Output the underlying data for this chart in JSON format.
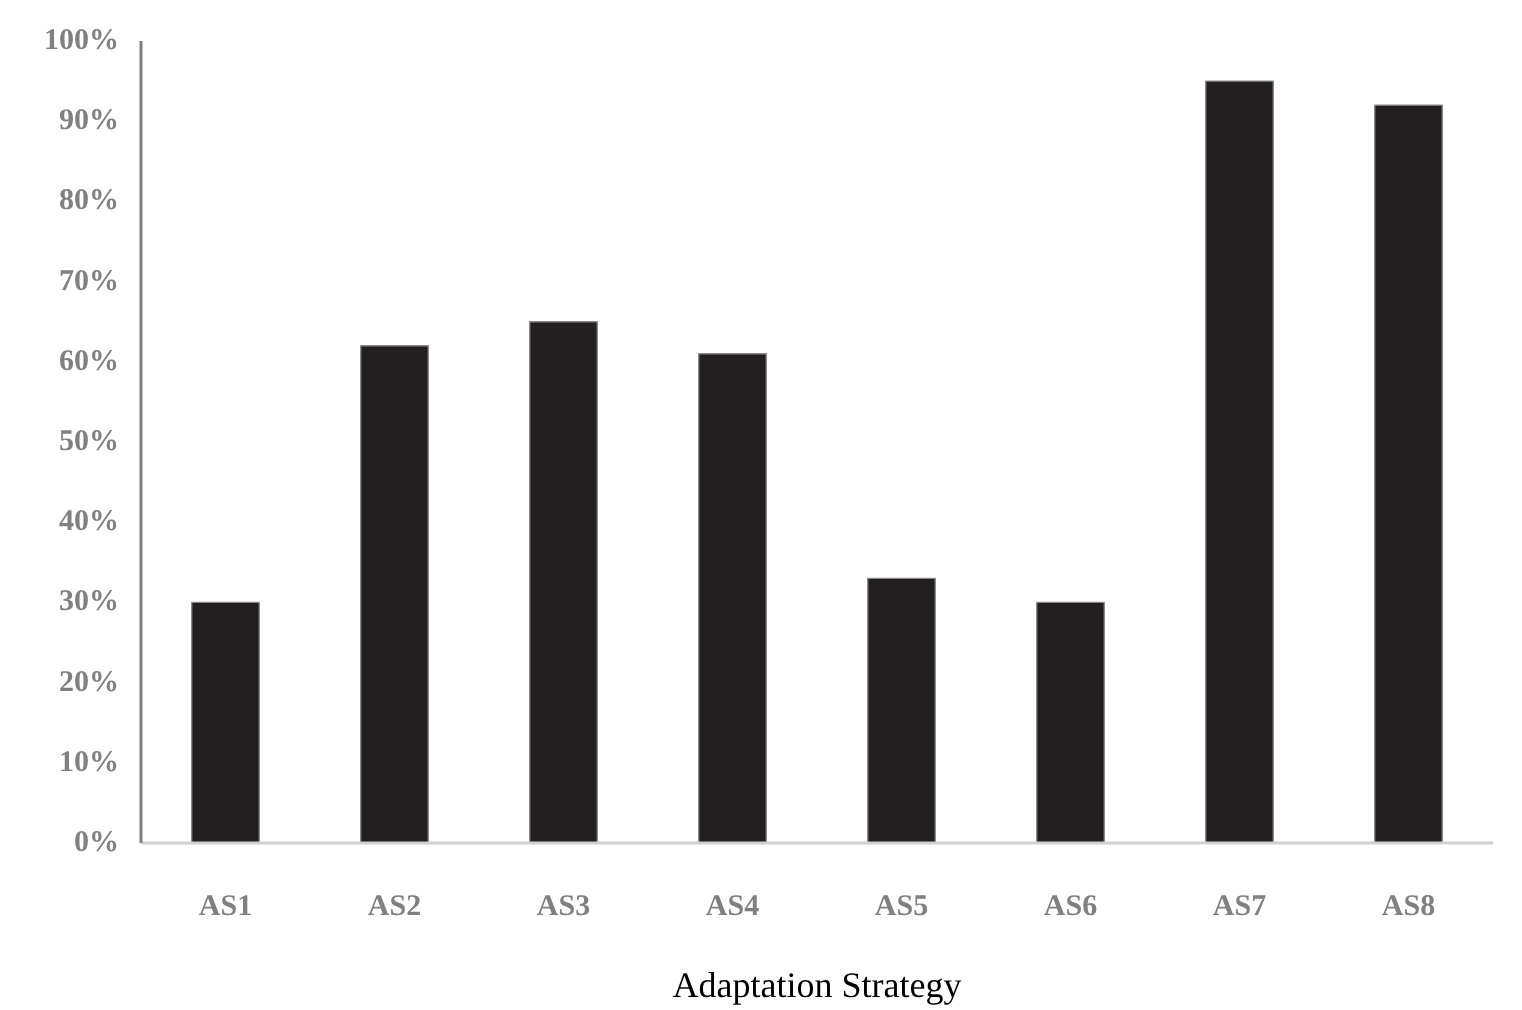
{
  "chart_data": {
    "type": "bar",
    "xlabel": "Adaptation Strategy",
    "categories": [
      "AS1",
      "AS2",
      "AS3",
      "AS4",
      "AS5",
      "AS6",
      "AS7",
      "AS8"
    ],
    "values": [
      30,
      62,
      65,
      61,
      33,
      30,
      95,
      92
    ],
    "color": "#231f20",
    "ylim": [
      0,
      100
    ],
    "yticks": [
      {
        "value": 0,
        "label": "0%"
      },
      {
        "value": 10,
        "label": "10%"
      },
      {
        "value": 20,
        "label": "20%"
      },
      {
        "value": 30,
        "label": "30%"
      },
      {
        "value": 40,
        "label": "40%"
      },
      {
        "value": 50,
        "label": "50%"
      },
      {
        "value": 60,
        "label": "60%"
      },
      {
        "value": 70,
        "label": "70%"
      },
      {
        "value": 80,
        "label": "80%"
      },
      {
        "value": 90,
        "label": "90%"
      },
      {
        "value": 100,
        "label": "100%"
      }
    ],
    "grid": false
  }
}
